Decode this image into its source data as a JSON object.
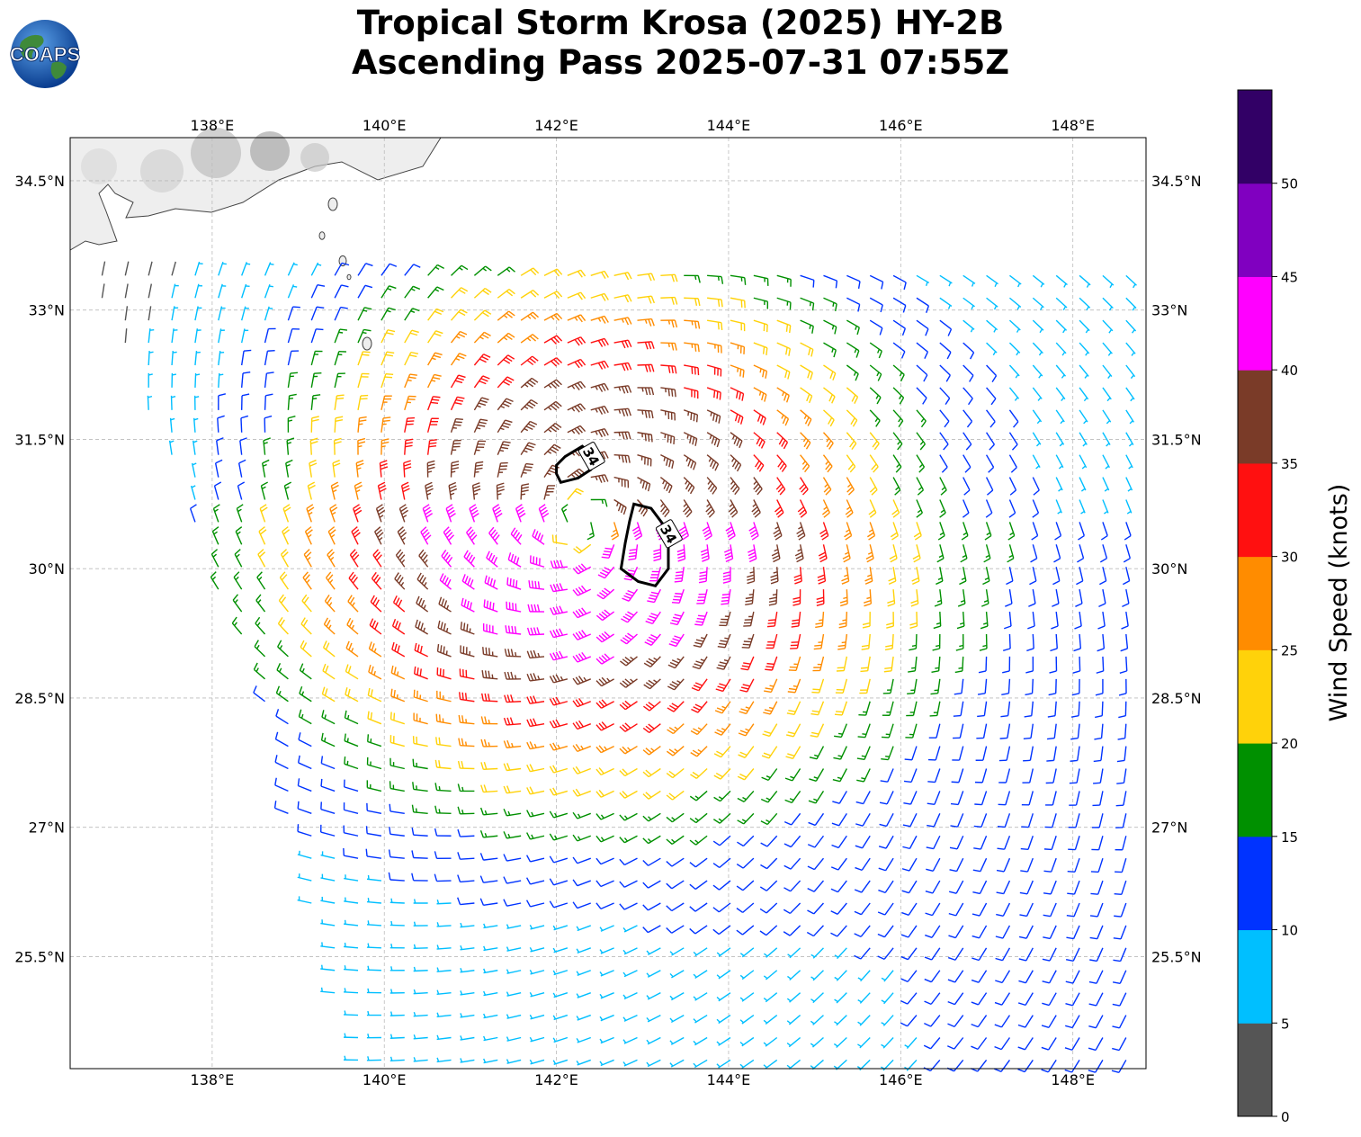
{
  "title": {
    "line1": "Tropical Storm Krosa (2025) HY-2B",
    "line2": "Ascending Pass 2025-07-31 07:55Z"
  },
  "logo": {
    "text": "COAPS",
    "icon": "earth-globe-icon"
  },
  "map": {
    "lon_range": [
      136.35,
      148.85
    ],
    "lat_range": [
      24.2,
      35.0
    ],
    "lon_ticks": [
      {
        "value": 138,
        "label": "138°E"
      },
      {
        "value": 140,
        "label": "140°E"
      },
      {
        "value": 142,
        "label": "142°E"
      },
      {
        "value": 144,
        "label": "144°E"
      },
      {
        "value": 146,
        "label": "146°E"
      },
      {
        "value": 148,
        "label": "148°E"
      }
    ],
    "lat_ticks": [
      {
        "value": 34.5,
        "label": "34.5°N"
      },
      {
        "value": 33,
        "label": "33°N"
      },
      {
        "value": 31.5,
        "label": "31.5°N"
      },
      {
        "value": 30,
        "label": "30°N"
      },
      {
        "value": 28.5,
        "label": "28.5°N"
      },
      {
        "value": 27,
        "label": "27°N"
      },
      {
        "value": 25.5,
        "label": "25.5°N"
      }
    ],
    "grid": true,
    "storm_center": {
      "lon": 142.3,
      "lat": 30.55
    },
    "contour_34kt": {
      "label": "34",
      "polygons": [
        [
          [
            142.0,
            31.2
          ],
          [
            142.1,
            31.3
          ],
          [
            142.3,
            31.42
          ],
          [
            142.45,
            31.3
          ],
          [
            142.4,
            31.15
          ],
          [
            142.25,
            31.05
          ],
          [
            142.05,
            31.0
          ],
          [
            142.0,
            31.1
          ]
        ],
        [
          [
            142.9,
            30.75
          ],
          [
            143.1,
            30.7
          ],
          [
            143.25,
            30.5
          ],
          [
            143.3,
            30.3
          ],
          [
            143.3,
            30.0
          ],
          [
            143.15,
            29.8
          ],
          [
            142.95,
            29.85
          ],
          [
            142.75,
            30.0
          ],
          [
            142.8,
            30.3
          ],
          [
            142.85,
            30.55
          ]
        ]
      ],
      "label_points": [
        {
          "lon": 142.4,
          "lat": 31.3
        },
        {
          "lon": 143.3,
          "lat": 30.4
        }
      ]
    },
    "swath": {
      "west_edge": [
        [
          136.5,
          33.6
        ],
        [
          137.6,
          30.9
        ],
        [
          138.55,
          28.5
        ],
        [
          139.6,
          24.2
        ]
      ],
      "east_edge": [
        [
          148.85,
          35.0
        ],
        [
          148.85,
          24.2
        ]
      ],
      "north_edge_lat": 34.3
    }
  },
  "colorbar": {
    "title": "Wind Speed (knots)",
    "ticks": [
      "0",
      "5",
      "10",
      "15",
      "20",
      "25",
      "30",
      "35",
      "40",
      "45",
      "50"
    ],
    "colors": [
      "#555555",
      "#00bfff",
      "#0033ff",
      "#009000",
      "#ffd20a",
      "#ff8c00",
      "#ff1010",
      "#7a3b28",
      "#ff00ff",
      "#8000c0",
      "#320066"
    ],
    "max": 55
  }
}
